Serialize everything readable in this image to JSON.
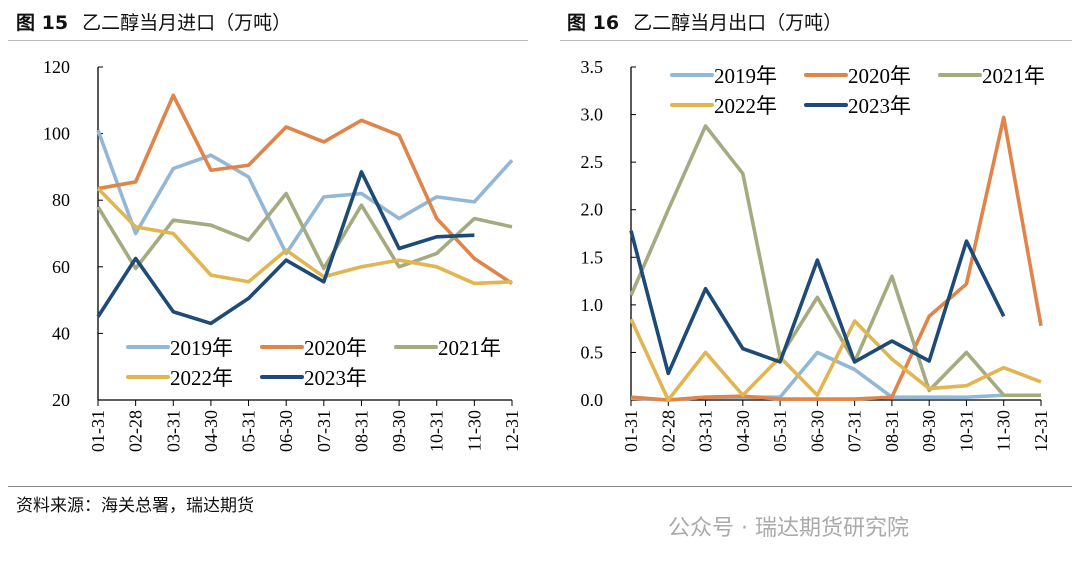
{
  "footer": {
    "source": "资料来源：海关总署，瑞达期货",
    "watermark": "公众号 · 瑞达期货研究院"
  },
  "colors": {
    "2019年": "#93b8d6",
    "2020年": "#e0844a",
    "2021年": "#a4ab80",
    "2022年": "#e1b550",
    "2023年": "#1d4a76"
  },
  "chart_data": [
    {
      "type": "line",
      "fig_label": "图 15",
      "title": "乙二醇当月进口（万吨）",
      "categories": [
        "01-31",
        "02-28",
        "03-31",
        "04-30",
        "05-31",
        "06-30",
        "07-31",
        "08-31",
        "09-30",
        "10-31",
        "11-30",
        "12-31"
      ],
      "ylim": [
        20,
        120
      ],
      "yticks": [
        "20",
        "40",
        "60",
        "80",
        "100",
        "120"
      ],
      "legend": "bottom-inside",
      "series": [
        {
          "name": "2019年",
          "values": [
            101,
            70,
            89.5,
            93.5,
            87,
            64,
            81,
            82,
            74.5,
            81,
            79.5,
            92
          ]
        },
        {
          "name": "2020年",
          "values": [
            83.5,
            85.5,
            111.5,
            89,
            90.5,
            102,
            97.5,
            104,
            99.5,
            74.5,
            62.5,
            55
          ]
        },
        {
          "name": "2021年",
          "values": [
            78,
            59.5,
            74,
            72.5,
            68,
            82,
            59.5,
            78.5,
            60,
            64,
            74.5,
            72
          ]
        },
        {
          "name": "2022年",
          "values": [
            83.5,
            72,
            70,
            57.5,
            55.5,
            65,
            57,
            60,
            62,
            60,
            55,
            55.5
          ]
        },
        {
          "name": "2023年",
          "values": [
            45,
            62.5,
            46.5,
            43,
            50.5,
            62,
            55.5,
            88.5,
            65.5,
            69,
            69.5,
            null
          ]
        }
      ]
    },
    {
      "type": "line",
      "fig_label": "图 16",
      "title": "乙二醇当月出口（万吨）",
      "categories": [
        "01-31",
        "02-28",
        "03-31",
        "04-30",
        "05-31",
        "06-30",
        "07-31",
        "08-31",
        "09-30",
        "10-31",
        "11-30",
        "12-31"
      ],
      "ylim": [
        0,
        3.5
      ],
      "yticks": [
        "0.0",
        "0.5",
        "1.0",
        "1.5",
        "2.0",
        "2.5",
        "3.0",
        "3.5"
      ],
      "legend": "top-inside",
      "series": [
        {
          "name": "2019年",
          "values": [
            0.02,
            0,
            0.03,
            0.03,
            0.03,
            0.5,
            0.32,
            0.03,
            0.03,
            0.03,
            0.05,
            0.05
          ]
        },
        {
          "name": "2020年",
          "values": [
            0.03,
            0,
            0.03,
            0.04,
            0.01,
            0.01,
            0.01,
            0.03,
            0.88,
            1.22,
            2.97,
            0.78
          ]
        },
        {
          "name": "2021年",
          "values": [
            1.1,
            2.0,
            2.88,
            2.38,
            0.45,
            1.08,
            0.4,
            1.3,
            0.1,
            0.5,
            0.05,
            0.05
          ]
        },
        {
          "name": "2022年",
          "values": [
            0.85,
            0,
            0.5,
            0.05,
            0.45,
            0.05,
            0.83,
            0.43,
            0.12,
            0.15,
            0.34,
            0.19
          ]
        },
        {
          "name": "2023年",
          "values": [
            1.78,
            0.28,
            1.17,
            0.54,
            0.4,
            1.47,
            0.4,
            0.62,
            0.41,
            1.67,
            0.88,
            null
          ]
        }
      ]
    }
  ]
}
